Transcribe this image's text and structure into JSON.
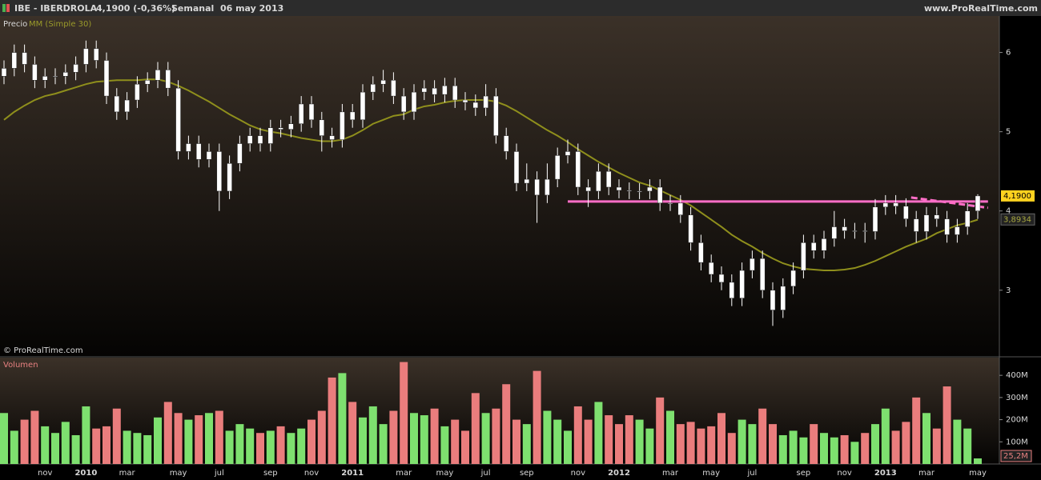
{
  "header": {
    "symbol": "IBE - IBERDROLA",
    "quote": "4,1900 (-0,36%)",
    "period": "Semanal  06 may 2013",
    "site": "www.ProRealTime.com"
  },
  "chart_data": [
    {
      "type": "candlestick",
      "label": "Precio",
      "copyright": "© ProRealTime.com",
      "color": "#ffffff",
      "categories": [
        null,
        null,
        null,
        null,
        "nov",
        null,
        null,
        null,
        "2010",
        null,
        null,
        null,
        "mar",
        null,
        null,
        null,
        null,
        "may",
        null,
        null,
        null,
        "jul",
        null,
        null,
        null,
        null,
        "sep",
        null,
        null,
        null,
        "nov",
        null,
        null,
        null,
        "2011",
        null,
        null,
        null,
        null,
        "mar",
        null,
        null,
        null,
        "may",
        null,
        null,
        null,
        "jul",
        null,
        null,
        null,
        "sep",
        null,
        null,
        null,
        null,
        "nov",
        null,
        null,
        null,
        "2012",
        null,
        null,
        null,
        null,
        "mar",
        null,
        null,
        null,
        "may",
        null,
        null,
        null,
        "jul",
        null,
        null,
        null,
        null,
        "sep",
        null,
        null,
        null,
        "nov",
        null,
        null,
        null,
        "2013",
        null,
        null,
        null,
        "mar",
        null,
        null,
        null,
        null,
        "may"
      ],
      "open": [
        5.7,
        5.8,
        6.0,
        5.85,
        5.65,
        5.7,
        5.7,
        5.75,
        5.85,
        6.05,
        5.9,
        5.45,
        5.25,
        5.4,
        5.6,
        5.65,
        5.78,
        5.55,
        4.75,
        4.85,
        4.65,
        4.75,
        4.25,
        4.6,
        4.85,
        4.95,
        4.85,
        5.05,
        5.03,
        5.1,
        5.35,
        5.15,
        4.95,
        4.9,
        5.25,
        5.15,
        5.5,
        5.6,
        5.65,
        5.45,
        5.25,
        5.5,
        5.55,
        5.47,
        5.58,
        5.4,
        5.37,
        5.3,
        5.45,
        4.95,
        4.75,
        4.35,
        4.4,
        4.2,
        4.4,
        4.7,
        4.75,
        4.3,
        4.25,
        4.5,
        4.3,
        4.26,
        4.25,
        4.25,
        4.3,
        4.1,
        4.1,
        3.95,
        3.6,
        3.35,
        3.2,
        3.1,
        2.9,
        3.25,
        3.4,
        3.0,
        2.75,
        3.05,
        3.25,
        3.6,
        3.5,
        3.65,
        3.8,
        3.75,
        3.75,
        3.74,
        4.05,
        4.1,
        4.06,
        3.9,
        3.74,
        3.95,
        3.9,
        3.7,
        3.8,
        4.0
      ],
      "high": [
        5.9,
        6.1,
        6.1,
        5.95,
        5.8,
        5.8,
        5.85,
        5.95,
        6.15,
        6.15,
        6.0,
        5.55,
        5.5,
        5.7,
        5.75,
        5.88,
        5.88,
        5.65,
        4.95,
        4.95,
        4.85,
        4.85,
        4.7,
        4.95,
        5.05,
        5.05,
        5.15,
        5.15,
        5.2,
        5.45,
        5.45,
        5.25,
        5.05,
        5.35,
        5.35,
        5.6,
        5.7,
        5.78,
        5.75,
        5.55,
        5.6,
        5.65,
        5.65,
        5.68,
        5.68,
        5.5,
        5.47,
        5.6,
        5.55,
        5.05,
        4.85,
        4.6,
        4.5,
        4.6,
        4.8,
        4.9,
        4.85,
        4.4,
        4.6,
        4.6,
        4.4,
        4.36,
        4.35,
        4.4,
        4.4,
        4.2,
        4.2,
        4.05,
        3.7,
        3.45,
        3.3,
        3.2,
        3.35,
        3.5,
        3.5,
        3.1,
        3.15,
        3.35,
        3.7,
        3.7,
        3.75,
        4.0,
        3.9,
        3.85,
        3.85,
        4.15,
        4.2,
        4.2,
        4.16,
        4.0,
        4.05,
        4.05,
        4.0,
        3.9,
        4.1,
        4.21
      ],
      "low": [
        5.6,
        5.7,
        5.75,
        5.55,
        5.55,
        5.6,
        5.6,
        5.65,
        5.75,
        5.8,
        5.35,
        5.15,
        5.15,
        5.3,
        5.5,
        5.55,
        5.45,
        4.65,
        4.65,
        4.55,
        4.55,
        4.0,
        4.15,
        4.5,
        4.75,
        4.75,
        4.75,
        4.93,
        4.93,
        5.0,
        5.05,
        4.75,
        4.8,
        4.8,
        5.05,
        5.05,
        5.4,
        5.5,
        5.35,
        5.15,
        5.15,
        5.4,
        5.37,
        5.37,
        5.3,
        5.27,
        5.2,
        5.2,
        4.85,
        4.65,
        4.25,
        4.25,
        3.85,
        4.1,
        4.3,
        4.6,
        4.2,
        4.05,
        4.15,
        4.2,
        4.16,
        4.15,
        4.15,
        4.15,
        4.0,
        4.0,
        3.85,
        3.5,
        3.25,
        3.1,
        3.0,
        2.8,
        2.8,
        3.15,
        2.9,
        2.55,
        2.65,
        2.95,
        3.15,
        3.4,
        3.4,
        3.55,
        3.65,
        3.65,
        3.6,
        3.64,
        3.95,
        3.96,
        3.8,
        3.6,
        3.64,
        3.8,
        3.6,
        3.6,
        3.7,
        3.9
      ],
      "close": [
        5.8,
        6.0,
        5.85,
        5.65,
        5.7,
        5.7,
        5.75,
        5.85,
        6.05,
        5.9,
        5.45,
        5.25,
        5.4,
        5.6,
        5.65,
        5.78,
        5.55,
        4.75,
        4.85,
        4.65,
        4.75,
        4.25,
        4.6,
        4.85,
        4.95,
        4.85,
        5.05,
        5.03,
        5.1,
        5.35,
        5.15,
        4.95,
        4.9,
        5.25,
        5.15,
        5.5,
        5.6,
        5.65,
        5.45,
        5.25,
        5.5,
        5.55,
        5.47,
        5.58,
        5.4,
        5.37,
        5.3,
        5.45,
        4.95,
        4.75,
        4.35,
        4.4,
        4.2,
        4.4,
        4.7,
        4.75,
        4.3,
        4.25,
        4.5,
        4.3,
        4.26,
        4.25,
        4.25,
        4.3,
        4.1,
        4.1,
        3.95,
        3.6,
        3.35,
        3.2,
        3.1,
        2.9,
        3.25,
        3.4,
        3.0,
        2.75,
        3.05,
        3.25,
        3.6,
        3.5,
        3.65,
        3.8,
        3.75,
        3.75,
        3.74,
        4.05,
        4.1,
        4.06,
        3.9,
        3.74,
        3.95,
        3.9,
        3.7,
        3.8,
        4.0,
        4.19
      ],
      "indicator": {
        "name": "MM (Simple 30)",
        "color": "#8f8f1c",
        "values": [
          5.15,
          5.25,
          5.33,
          5.4,
          5.45,
          5.48,
          5.52,
          5.56,
          5.6,
          5.63,
          5.64,
          5.65,
          5.65,
          5.65,
          5.66,
          5.66,
          5.63,
          5.58,
          5.52,
          5.45,
          5.38,
          5.3,
          5.22,
          5.15,
          5.08,
          5.03,
          5.0,
          4.98,
          4.95,
          4.92,
          4.9,
          4.88,
          4.88,
          4.9,
          4.95,
          5.02,
          5.1,
          5.15,
          5.2,
          5.22,
          5.28,
          5.32,
          5.34,
          5.37,
          5.39,
          5.4,
          5.4,
          5.4,
          5.38,
          5.33,
          5.26,
          5.18,
          5.1,
          5.02,
          4.95,
          4.87,
          4.78,
          4.7,
          4.62,
          4.55,
          4.48,
          4.42,
          4.36,
          4.32,
          4.26,
          4.2,
          4.14,
          4.07,
          3.98,
          3.89,
          3.8,
          3.7,
          3.62,
          3.55,
          3.47,
          3.4,
          3.34,
          3.3,
          3.27,
          3.26,
          3.25,
          3.25,
          3.26,
          3.28,
          3.32,
          3.37,
          3.43,
          3.49,
          3.55,
          3.6,
          3.65,
          3.72,
          3.77,
          3.82,
          3.85,
          3.89
        ]
      },
      "trend_lines": [
        {
          "x": [
            55,
            96
          ],
          "y": [
            4.12,
            4.12
          ],
          "color": "#ff6ec7",
          "dashed": false
        },
        {
          "x": [
            88.5,
            96
          ],
          "y": [
            4.17,
            4.04
          ],
          "color": "#ff6ec7",
          "dashed": true
        }
      ],
      "last_price": {
        "value": 4.19,
        "label": "4,1900"
      },
      "indicator_last": {
        "value": 3.8934,
        "label": "3,8934"
      },
      "ylim": [
        2.17,
        6.44
      ],
      "yticks": [
        3,
        4,
        5,
        6
      ]
    },
    {
      "type": "bar",
      "label": "Volumen",
      "up_color": "#7ee06f",
      "down_color": "#ea7d7d",
      "values": [
        230,
        150,
        200,
        240,
        170,
        140,
        190,
        130,
        260,
        160,
        170,
        250,
        150,
        140,
        130,
        210,
        280,
        230,
        200,
        220,
        230,
        240,
        150,
        180,
        160,
        140,
        150,
        170,
        140,
        160,
        200,
        240,
        390,
        410,
        280,
        210,
        260,
        180,
        240,
        460,
        230,
        220,
        250,
        170,
        200,
        150,
        320,
        230,
        250,
        360,
        200,
        180,
        420,
        240,
        200,
        150,
        260,
        200,
        280,
        220,
        180,
        220,
        200,
        160,
        300,
        240,
        180,
        190,
        160,
        170,
        230,
        140,
        200,
        180,
        250,
        180,
        130,
        150,
        120,
        180,
        140,
        120,
        130,
        100,
        140,
        180,
        250,
        150,
        190,
        300,
        230,
        160,
        350,
        200,
        160,
        25.2
      ],
      "last_value": {
        "value": 25.2,
        "label": "25,2M"
      },
      "ylim": [
        0,
        480
      ],
      "yticks": [
        {
          "value": 100,
          "label": "100M"
        },
        {
          "value": 200,
          "label": "200M"
        },
        {
          "value": 300,
          "label": "300M"
        },
        {
          "value": 400,
          "label": "400M"
        }
      ]
    }
  ]
}
